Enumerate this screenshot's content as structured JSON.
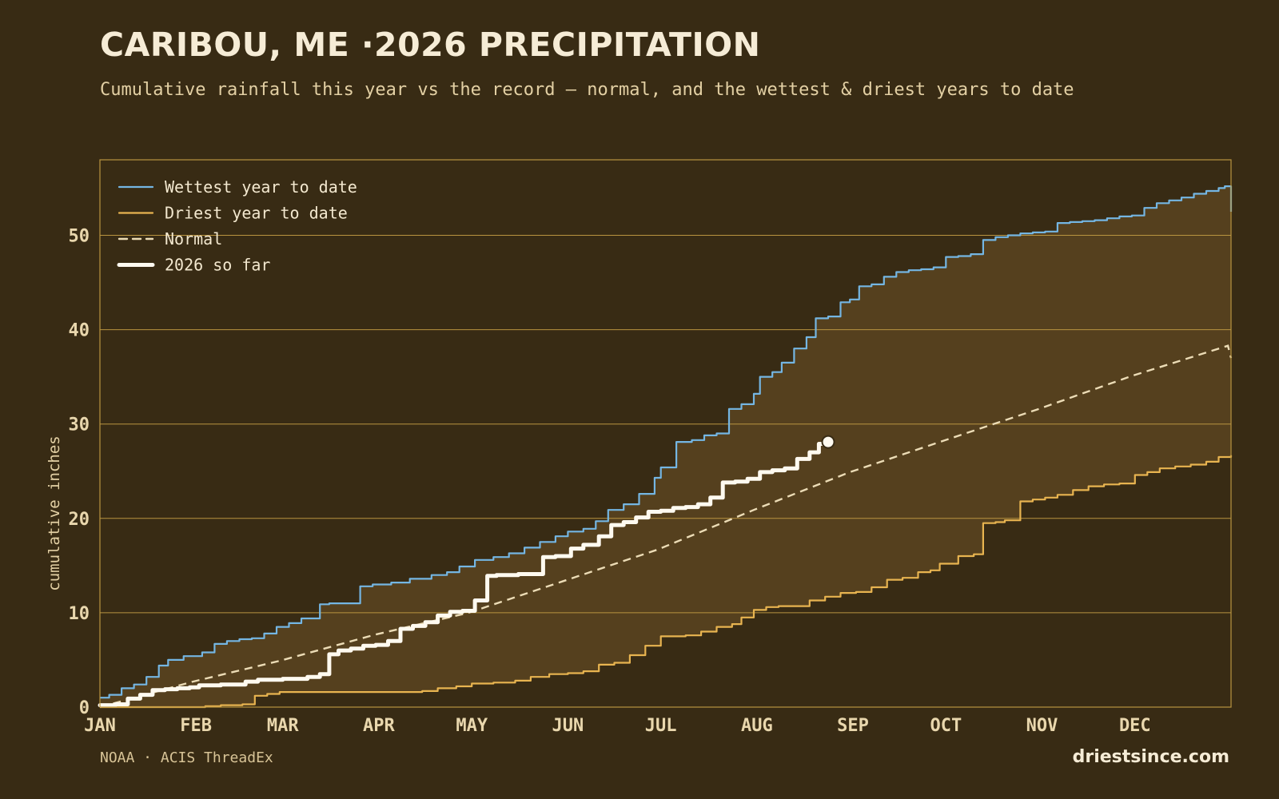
{
  "header": {
    "title": "CARIBOU, ME ·2026 PRECIPITATION",
    "subtitle": "Cumulative rainfall this year vs the record — normal, and the wettest & driest years to date"
  },
  "footer": {
    "source": "NOAA · ACIS ThreadEx",
    "brand": "driestsince.com"
  },
  "colors": {
    "background": "#382b14",
    "band_fill": "#55401e",
    "grid": "#b99440",
    "wettest": "#74b6e3",
    "driest": "#e8b450",
    "normal": "#ecdcb6",
    "current": "#fffaf0"
  },
  "chart_data": {
    "type": "line",
    "ylabel": "cumulative inches",
    "ylim": [
      0,
      58
    ],
    "yticks": [
      0,
      10,
      20,
      30,
      40,
      50
    ],
    "xlim": [
      1,
      366
    ],
    "x_unit": "day of year",
    "month_ticks": [
      {
        "label": "JAN",
        "day": 1
      },
      {
        "label": "FEB",
        "day": 32
      },
      {
        "label": "MAR",
        "day": 60
      },
      {
        "label": "APR",
        "day": 91
      },
      {
        "label": "MAY",
        "day": 121
      },
      {
        "label": "JUN",
        "day": 152
      },
      {
        "label": "JUL",
        "day": 182
      },
      {
        "label": "AUG",
        "day": 213
      },
      {
        "label": "SEP",
        "day": 244
      },
      {
        "label": "OCT",
        "day": 274
      },
      {
        "label": "NOV",
        "day": 305
      },
      {
        "label": "DEC",
        "day": 335
      }
    ],
    "grid": true,
    "legend_position": "top-left",
    "shaded_band": "between driest and wettest year to date",
    "series": [
      {
        "name": "Wettest year to date",
        "style": "solid",
        "x": [
          1,
          4,
          8,
          12,
          16,
          20,
          23,
          28,
          34,
          38,
          42,
          46,
          50,
          54,
          58,
          62,
          66,
          72,
          75,
          79,
          85,
          89,
          95,
          101,
          108,
          113,
          117,
          122,
          128,
          133,
          138,
          143,
          148,
          152,
          157,
          161,
          165,
          170,
          175,
          180,
          182,
          187,
          192,
          196,
          200,
          204,
          208,
          212,
          214,
          218,
          221,
          225,
          229,
          232,
          236,
          240,
          243,
          246,
          250,
          254,
          258,
          262,
          266,
          270,
          274,
          278,
          282,
          286,
          290,
          294,
          298,
          302,
          306,
          310,
          314,
          318,
          322,
          326,
          330,
          334,
          338,
          342,
          346,
          350,
          354,
          358,
          362,
          364,
          366
        ],
        "y": [
          1.0,
          1.3,
          2.0,
          2.4,
          3.2,
          4.4,
          5.0,
          5.4,
          5.8,
          6.7,
          7.0,
          7.2,
          7.3,
          7.8,
          8.5,
          8.9,
          9.4,
          10.9,
          11.0,
          11.0,
          12.8,
          13.0,
          13.2,
          13.6,
          14.0,
          14.3,
          14.9,
          15.6,
          15.9,
          16.3,
          16.9,
          17.5,
          18.1,
          18.6,
          18.9,
          19.7,
          20.9,
          21.5,
          22.6,
          24.3,
          25.4,
          28.1,
          28.3,
          28.8,
          29.0,
          31.6,
          32.1,
          33.2,
          35.0,
          35.5,
          36.5,
          38.0,
          39.2,
          41.2,
          41.4,
          42.9,
          43.2,
          44.6,
          44.8,
          45.6,
          46.1,
          46.3,
          46.4,
          46.6,
          47.7,
          47.8,
          48.0,
          49.5,
          49.8,
          50.0,
          50.2,
          50.3,
          50.4,
          51.3,
          51.4,
          51.5,
          51.6,
          51.8,
          52.0,
          52.1,
          52.9,
          53.4,
          53.7,
          54.0,
          54.4,
          54.7,
          55.0,
          55.2,
          52.5
        ]
      },
      {
        "name": "Driest year to date",
        "style": "solid",
        "x": [
          1,
          20,
          35,
          40,
          47,
          51,
          55,
          59,
          70,
          80,
          91,
          100,
          105,
          110,
          116,
          121,
          128,
          135,
          140,
          146,
          152,
          157,
          162,
          167,
          172,
          177,
          182,
          190,
          195,
          200,
          205,
          208,
          212,
          216,
          220,
          225,
          230,
          235,
          240,
          245,
          250,
          255,
          260,
          265,
          269,
          272,
          278,
          283,
          286,
          290,
          293,
          298,
          302,
          306,
          310,
          315,
          320,
          325,
          330,
          335,
          339,
          343,
          348,
          353,
          358,
          362,
          366
        ],
        "y": [
          0.0,
          0.0,
          0.1,
          0.2,
          0.3,
          1.2,
          1.4,
          1.6,
          1.6,
          1.6,
          1.6,
          1.6,
          1.7,
          2.0,
          2.2,
          2.5,
          2.6,
          2.8,
          3.2,
          3.5,
          3.6,
          3.8,
          4.5,
          4.7,
          5.5,
          6.5,
          7.5,
          7.6,
          8.0,
          8.5,
          8.8,
          9.5,
          10.3,
          10.6,
          10.7,
          10.7,
          11.3,
          11.7,
          12.1,
          12.2,
          12.7,
          13.5,
          13.7,
          14.3,
          14.5,
          15.2,
          16.0,
          16.2,
          19.5,
          19.6,
          19.8,
          21.8,
          22.0,
          22.2,
          22.5,
          23.0,
          23.4,
          23.6,
          23.7,
          24.6,
          24.9,
          25.3,
          25.5,
          25.7,
          26.0,
          26.5,
          26.7
        ]
      },
      {
        "name": "Normal",
        "style": "dashed",
        "x": [
          1,
          31,
          59,
          90,
          120,
          151,
          181,
          212,
          243,
          273,
          304,
          334,
          365,
          366
        ],
        "y": [
          0.0,
          2.7,
          4.9,
          7.7,
          10.0,
          13.4,
          16.7,
          20.9,
          24.9,
          28.2,
          31.6,
          35.1,
          38.3,
          37.0
        ]
      },
      {
        "name": "2026 so far",
        "style": "solid-thick",
        "x": [
          1,
          6,
          10,
          14,
          18,
          22,
          26,
          30,
          33,
          40,
          45,
          48,
          52,
          56,
          60,
          64,
          68,
          72,
          75,
          78,
          82,
          86,
          90,
          94,
          98,
          102,
          106,
          110,
          114,
          118,
          122,
          126,
          129,
          132,
          136,
          140,
          144,
          148,
          153,
          157,
          162,
          166,
          170,
          174,
          178,
          182,
          186,
          190,
          194,
          198,
          202,
          206,
          210,
          214,
          218,
          222,
          226,
          230,
          233,
          236
        ],
        "y": [
          0.2,
          0.3,
          0.9,
          1.3,
          1.8,
          1.9,
          2.0,
          2.1,
          2.3,
          2.4,
          2.4,
          2.7,
          2.9,
          2.9,
          3.0,
          3.0,
          3.2,
          3.5,
          5.6,
          6.0,
          6.2,
          6.5,
          6.6,
          7.0,
          8.3,
          8.6,
          9.0,
          9.7,
          10.1,
          10.2,
          11.3,
          13.9,
          14.0,
          14.0,
          14.1,
          14.1,
          15.9,
          16.0,
          16.8,
          17.2,
          18.1,
          19.3,
          19.6,
          20.1,
          20.7,
          20.8,
          21.1,
          21.2,
          21.5,
          22.2,
          23.8,
          23.9,
          24.2,
          24.9,
          25.1,
          25.3,
          26.3,
          27.0,
          27.9,
          28.1
        ]
      }
    ]
  }
}
